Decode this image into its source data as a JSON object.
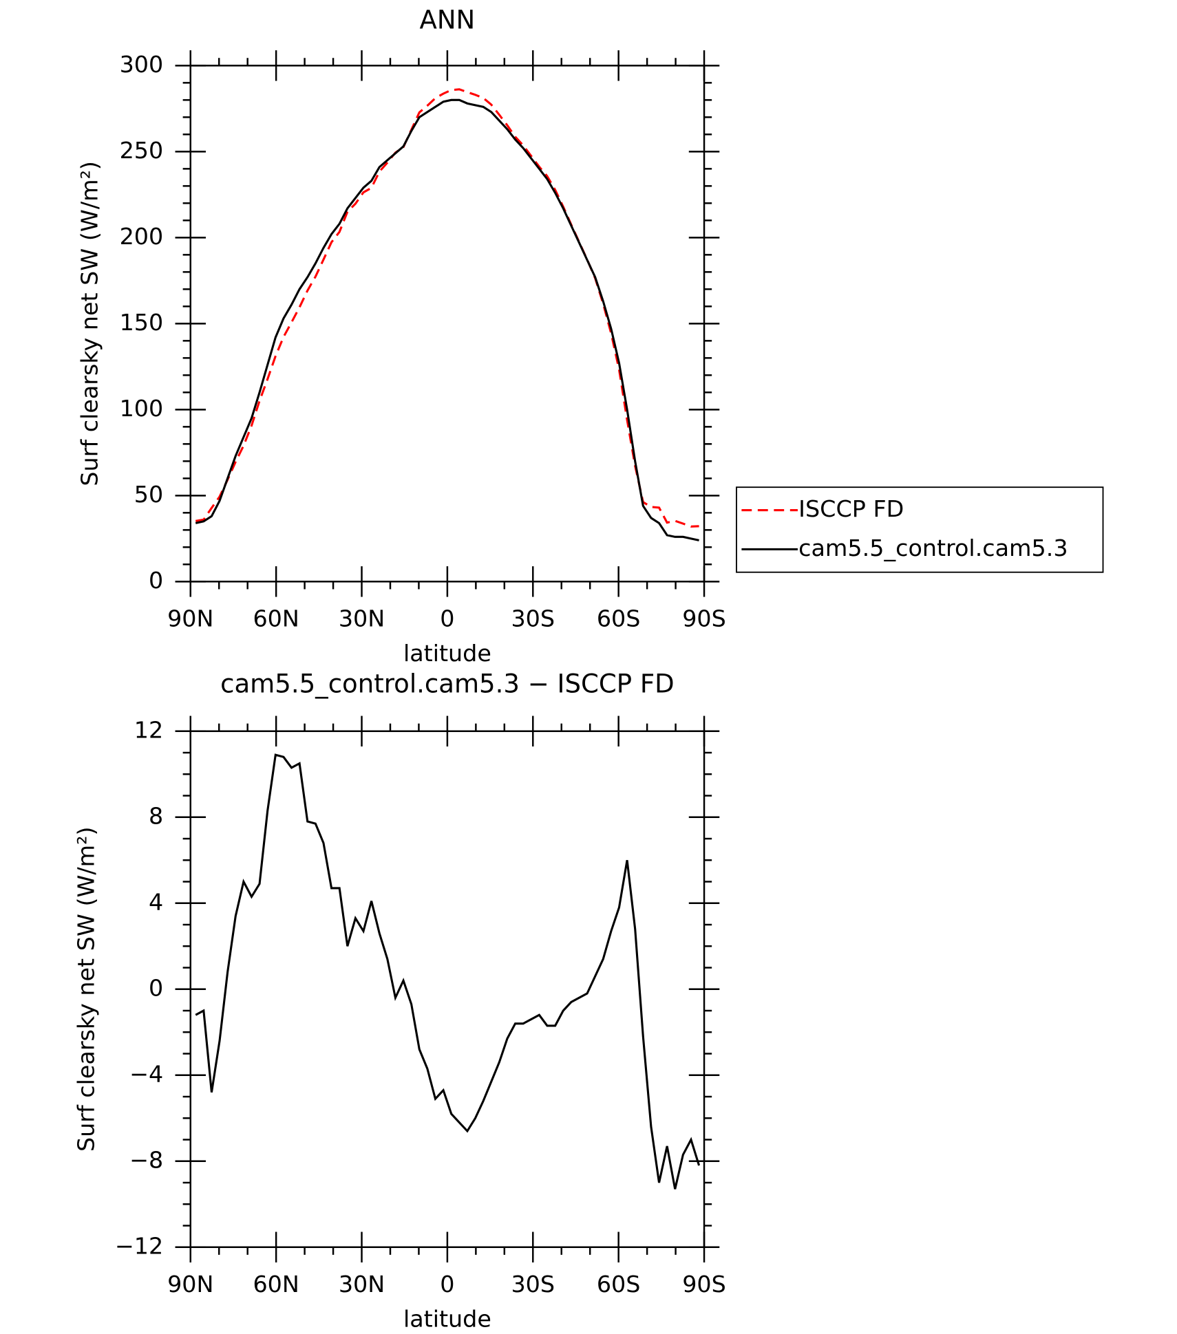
{
  "chart_data": [
    {
      "type": "line",
      "title": "ANN",
      "xlabel": "latitude",
      "ylabel": "Surf clearsky net SW (W/m²)",
      "x": [
        88.2,
        85.4,
        82.6,
        79.8,
        77,
        74.2,
        71.4,
        68.6,
        65.8,
        63,
        60.2,
        57.4,
        54.6,
        51.8,
        49,
        46.2,
        43.4,
        40.6,
        37.8,
        35,
        32.2,
        29.4,
        26.6,
        23.8,
        21,
        18.2,
        15.4,
        12.6,
        9.8,
        7,
        4.2,
        1.4,
        -1.4,
        -4.2,
        -7,
        -9.8,
        -12.6,
        -15.4,
        -18.2,
        -21,
        -23.8,
        -26.6,
        -29.4,
        -32.2,
        -35,
        -37.8,
        -40.6,
        -43.4,
        -46.2,
        -49,
        -51.8,
        -54.6,
        -57.4,
        -60.2,
        -63,
        -65.8,
        -68.6,
        -71.4,
        -74.2,
        -77,
        -79.8,
        -82.6,
        -85.4,
        -88.2
      ],
      "series": [
        {
          "name": "ISCCP FD",
          "color": "#ff0000",
          "dashed": true,
          "values": [
            35.2,
            36.0,
            42.8,
            49.4,
            59.2,
            69.6,
            79.0,
            90.7,
            105.1,
            117.7,
            131.1,
            142.2,
            150.7,
            159.5,
            169.2,
            177.3,
            187.2,
            197.3,
            203.3,
            215.0,
            219.7,
            226.3,
            228.9,
            238.4,
            243.6,
            249.4,
            252.6,
            262.7,
            272.8,
            276.7,
            281.1,
            283.7,
            285.8,
            286.2,
            284.6,
            283.0,
            281.2,
            277.3,
            271.4,
            265.3,
            258.6,
            253.6,
            247.4,
            241.2,
            235.7,
            227.7,
            218.0,
            207.6,
            197.4,
            187.2,
            176.4,
            161.6,
            144.3,
            123.2,
            94.0,
            67.2,
            46.2,
            43.4,
            43.0,
            34.3,
            35.3,
            33.7,
            32.0,
            32.2
          ]
        },
        {
          "name": "cam5.5_control.cam5.3",
          "color": "#000000",
          "dashed": false,
          "values": [
            34,
            35,
            38,
            47,
            60,
            73,
            84,
            95,
            110,
            126,
            142,
            153,
            161,
            170,
            177,
            185,
            194,
            202,
            208,
            217,
            223,
            229,
            233,
            241,
            245,
            249,
            253,
            262,
            270,
            273,
            276,
            279,
            280,
            280,
            278,
            277,
            276,
            273,
            268,
            263,
            257,
            252,
            246,
            240,
            234,
            226,
            217,
            207,
            197,
            187,
            177,
            163,
            147,
            127,
            100,
            70,
            44,
            37,
            34,
            27,
            26,
            26,
            25,
            24
          ]
        }
      ],
      "xlim": [
        90,
        -90
      ],
      "xticks": [
        {
          "value": 90,
          "label": "90N"
        },
        {
          "value": 60,
          "label": "60N"
        },
        {
          "value": 30,
          "label": "30N"
        },
        0,
        {
          "value": -30,
          "label": "30S"
        },
        {
          "value": -60,
          "label": "60S"
        },
        {
          "value": -90,
          "label": "90S"
        }
      ],
      "ylim": [
        0,
        300
      ],
      "yticks": [
        0,
        50,
        100,
        150,
        200,
        250,
        300
      ]
    },
    {
      "type": "line",
      "title": "cam5.5_control.cam5.3 − ISCCP FD",
      "xlabel": "latitude",
      "ylabel": "Surf clearsky net SW (W/m²)",
      "x": [
        88.2,
        85.4,
        82.6,
        79.8,
        77,
        74.2,
        71.4,
        68.6,
        65.8,
        63,
        60.2,
        57.4,
        54.6,
        51.8,
        49,
        46.2,
        43.4,
        40.6,
        37.8,
        35,
        32.2,
        29.4,
        26.6,
        23.8,
        21,
        18.2,
        15.4,
        12.6,
        9.8,
        7,
        4.2,
        1.4,
        -1.4,
        -4.2,
        -7,
        -9.8,
        -12.6,
        -15.4,
        -18.2,
        -21,
        -23.8,
        -26.6,
        -29.4,
        -32.2,
        -35,
        -37.8,
        -40.6,
        -43.4,
        -46.2,
        -49,
        -51.8,
        -54.6,
        -57.4,
        -60.2,
        -63,
        -65.8,
        -68.6,
        -71.4,
        -74.2,
        -77,
        -79.8,
        -82.6,
        -85.4,
        -88.2
      ],
      "color": "#000000",
      "values": [
        -1.2,
        -1.0,
        -4.8,
        -2.4,
        0.8,
        3.4,
        5.0,
        4.3,
        4.9,
        8.3,
        10.9,
        10.8,
        10.3,
        10.5,
        7.8,
        7.7,
        6.8,
        4.7,
        4.7,
        2.0,
        3.3,
        2.7,
        4.1,
        2.6,
        1.4,
        -0.4,
        0.4,
        -0.7,
        -2.8,
        -3.7,
        -5.1,
        -4.7,
        -5.8,
        -6.2,
        -6.6,
        -6.0,
        -5.2,
        -4.3,
        -3.4,
        -2.3,
        -1.6,
        -1.6,
        -1.4,
        -1.2,
        -1.7,
        -1.7,
        -1.0,
        -0.6,
        -0.4,
        -0.2,
        0.6,
        1.4,
        2.7,
        3.8,
        6.0,
        2.8,
        -2.2,
        -6.4,
        -9.0,
        -7.3,
        -9.3,
        -7.7,
        -7.0,
        -8.2
      ],
      "xlim": [
        90,
        -90
      ],
      "xticks": [
        {
          "value": 90,
          "label": "90N"
        },
        {
          "value": 60,
          "label": "60N"
        },
        {
          "value": 30,
          "label": "30N"
        },
        0,
        {
          "value": -30,
          "label": "30S"
        },
        {
          "value": -60,
          "label": "60S"
        },
        {
          "value": -90,
          "label": "90S"
        }
      ],
      "ylim": [
        -12,
        12
      ],
      "yticks": [
        {
          "value": -12,
          "label": "−12"
        },
        {
          "value": -8,
          "label": "−8"
        },
        {
          "value": -4,
          "label": "−4"
        },
        0,
        4,
        8,
        12
      ]
    }
  ]
}
